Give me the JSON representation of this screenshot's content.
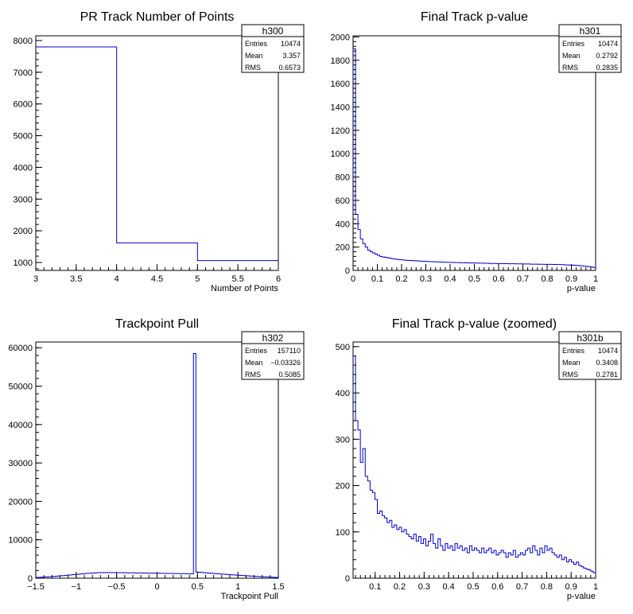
{
  "chart_data": [
    {
      "type": "bar",
      "histogram": "h300",
      "title": "PR Track Number of Points",
      "xlabel": "Number of Points",
      "ylabel": "",
      "xlim": [
        3,
        6
      ],
      "ylim": [
        750,
        8150
      ],
      "xticks": [
        3,
        3.5,
        4,
        4.5,
        5,
        5.5,
        6
      ],
      "xtick_labels": [
        "3",
        "3.5",
        "4",
        "4.5",
        "5",
        "5.5",
        "6"
      ],
      "yticks": [
        1000,
        2000,
        3000,
        4000,
        5000,
        6000,
        7000,
        8000
      ],
      "ytick_labels": [
        "1000",
        "2000",
        "3000",
        "4000",
        "5000",
        "6000",
        "7000",
        "8000"
      ],
      "bin_edges": [
        3,
        4,
        5,
        6
      ],
      "values": [
        7800,
        1620,
        1060
      ],
      "stats": {
        "name": "h300",
        "rows": [
          {
            "label": "Entries",
            "value": "10474"
          },
          {
            "label": "Mean",
            "value": "3.357"
          },
          {
            "label": "RMS",
            "value": "0.6573"
          }
        ]
      },
      "color": "#0000cc"
    },
    {
      "type": "bar",
      "histogram": "h301",
      "title": "Final Track p-value",
      "xlabel": "p-value",
      "ylabel": "",
      "xlim": [
        0,
        1
      ],
      "ylim": [
        0,
        2010
      ],
      "xticks": [
        0,
        0.1,
        0.2,
        0.3,
        0.4,
        0.5,
        0.6,
        0.7,
        0.8,
        0.9,
        1
      ],
      "xtick_labels": [
        "0",
        "0.1",
        "0.2",
        "0.3",
        "0.4",
        "0.5",
        "0.6",
        "0.7",
        "0.8",
        "0.9",
        "1"
      ],
      "yticks": [
        0,
        200,
        400,
        600,
        800,
        1000,
        1200,
        1400,
        1600,
        1800,
        2000
      ],
      "ytick_labels": [
        "0",
        "200",
        "400",
        "600",
        "800",
        "1000",
        "1200",
        "1400",
        "1600",
        "1800",
        "2000"
      ],
      "bin_edges_range": [
        0,
        1
      ],
      "values": [
        1900,
        480,
        350,
        270,
        230,
        200,
        175,
        160,
        150,
        140,
        130,
        120,
        115,
        112,
        108,
        104,
        100,
        97,
        94,
        92,
        90,
        88,
        86,
        85,
        84,
        83,
        82,
        80,
        79,
        78,
        77,
        76,
        75,
        74,
        73,
        72,
        72,
        71,
        70,
        69,
        69,
        68,
        67,
        67,
        66,
        66,
        65,
        65,
        64,
        64,
        63,
        63,
        62,
        62,
        61,
        61,
        60,
        60,
        60,
        59,
        59,
        58,
        58,
        58,
        57,
        57,
        57,
        56,
        56,
        56,
        55,
        55,
        55,
        54,
        54,
        54,
        53,
        53,
        53,
        52,
        52,
        52,
        51,
        51,
        50,
        50,
        49,
        48,
        47,
        46,
        45,
        44,
        43,
        41,
        39,
        37,
        35,
        32,
        29,
        25
      ],
      "stats": {
        "name": "h301",
        "rows": [
          {
            "label": "Entries",
            "value": "10474"
          },
          {
            "label": "Mean",
            "value": "0.2792"
          },
          {
            "label": "RMS",
            "value": "0.2835"
          }
        ]
      },
      "color": "#0000cc"
    },
    {
      "type": "bar",
      "histogram": "h302",
      "title": "Trackpoint Pull",
      "xlabel": "Trackpoint Pull",
      "ylabel": "",
      "xlim": [
        -1.5,
        1.5
      ],
      "ylim": [
        0,
        61500
      ],
      "xticks": [
        -1.5,
        -1,
        -0.5,
        0,
        0.5,
        1,
        1.5
      ],
      "xtick_labels": [
        "−1.5",
        "−1",
        "−0.5",
        "0",
        "0.5",
        "1",
        "1.5"
      ],
      "yticks": [
        0,
        10000,
        20000,
        30000,
        40000,
        50000,
        60000
      ],
      "ytick_labels": [
        "0",
        "10000",
        "20000",
        "30000",
        "40000",
        "50000",
        "60000"
      ],
      "bin_edges_range": [
        -1.5,
        1.5
      ],
      "values": [
        200,
        220,
        260,
        300,
        340,
        380,
        420,
        470,
        520,
        570,
        620,
        680,
        740,
        800,
        860,
        920,
        980,
        1040,
        1100,
        1160,
        1210,
        1260,
        1300,
        1340,
        1380,
        1420,
        1440,
        1460,
        1470,
        1480,
        1480,
        1480,
        1470,
        1460,
        1450,
        1440,
        1430,
        1420,
        1410,
        1400,
        1390,
        1380,
        1370,
        1360,
        1350,
        1340,
        1330,
        1320,
        1310,
        1300,
        1290,
        1280,
        1270,
        1260,
        1250,
        1240,
        1230,
        1220,
        1210,
        1200,
        1190,
        1180,
        1170,
        1160,
        1150,
        58500,
        1600,
        1550,
        1500,
        1450,
        1400,
        1350,
        1300,
        1250,
        1200,
        1150,
        1100,
        1050,
        1000,
        950,
        900,
        860,
        820,
        780,
        740,
        700,
        660,
        620,
        580,
        540,
        500,
        460,
        420,
        390,
        360,
        330,
        300,
        270,
        240,
        220
      ],
      "stats": {
        "name": "h302",
        "rows": [
          {
            "label": "Entries",
            "value": "157110"
          },
          {
            "label": "Mean",
            "value": "−0.03326"
          },
          {
            "label": "RMS",
            "value": "0.5085"
          }
        ]
      },
      "color": "#0000cc"
    },
    {
      "type": "bar",
      "histogram": "h301b",
      "title": "Final Track p-value (zoomed)",
      "xlabel": "p-value",
      "ylabel": "",
      "xlim": [
        0.01,
        1
      ],
      "ylim": [
        0,
        510
      ],
      "xticks": [
        0.1,
        0.2,
        0.3,
        0.4,
        0.5,
        0.6,
        0.7,
        0.8,
        0.9,
        1
      ],
      "xtick_labels": [
        "0.1",
        "0.2",
        "0.3",
        "0.4",
        "0.5",
        "0.6",
        "0.7",
        "0.8",
        "0.9",
        "1"
      ],
      "yticks": [
        0,
        100,
        200,
        300,
        400,
        500
      ],
      "ytick_labels": [
        "0",
        "100",
        "200",
        "300",
        "400",
        "500"
      ],
      "bin_edges_range": [
        0.01,
        1
      ],
      "values": [
        480,
        340,
        320,
        250,
        280,
        220,
        210,
        190,
        185,
        170,
        140,
        145,
        135,
        130,
        120,
        125,
        110,
        115,
        105,
        110,
        100,
        105,
        95,
        90,
        85,
        95,
        80,
        90,
        75,
        85,
        70,
        80,
        95,
        75,
        65,
        85,
        70,
        60,
        75,
        65,
        70,
        60,
        75,
        65,
        70,
        60,
        65,
        55,
        70,
        60,
        65,
        60,
        55,
        65,
        55,
        60,
        65,
        55,
        60,
        50,
        55,
        60,
        55,
        45,
        55,
        50,
        60,
        45,
        50,
        55,
        50,
        60,
        65,
        55,
        70,
        60,
        50,
        65,
        55,
        70,
        60,
        65,
        55,
        50,
        45,
        50,
        40,
        45,
        35,
        40,
        35,
        30,
        35,
        28,
        25,
        22,
        20,
        18,
        15,
        12
      ],
      "stats": {
        "name": "h301b",
        "rows": [
          {
            "label": "Entries",
            "value": "10474"
          },
          {
            "label": "Mean",
            "value": "0.3408"
          },
          {
            "label": "RMS",
            "value": "0.2781"
          }
        ]
      },
      "color": "#0000cc"
    }
  ]
}
